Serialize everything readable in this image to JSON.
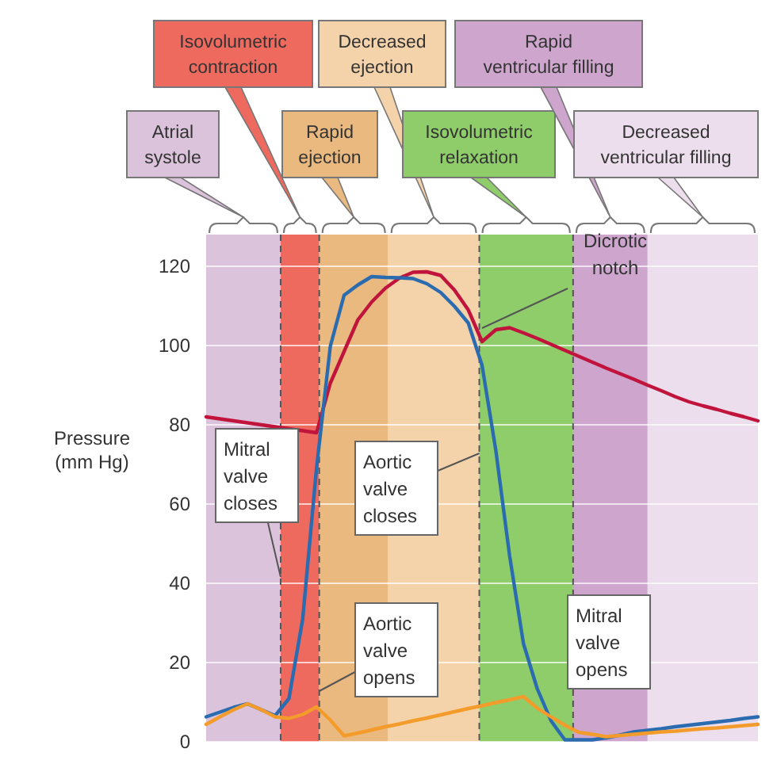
{
  "chart_data": {
    "type": "line",
    "ylabel": "Pressure (mm Hg)",
    "ylim": [
      0,
      128
    ],
    "yticks": [
      0,
      20,
      40,
      60,
      80,
      100,
      120
    ],
    "tick_labels": "y",
    "grid": "y",
    "line_style": "solid",
    "categories": [
      null,
      null,
      null,
      null,
      null,
      null,
      null,
      null,
      null,
      null,
      null,
      null,
      null,
      null,
      null,
      null,
      null,
      null,
      null,
      null,
      null,
      null,
      null,
      null,
      null,
      null,
      null,
      null,
      null,
      null,
      null,
      null,
      null,
      null,
      null,
      null,
      null,
      null,
      null,
      null,
      null
    ],
    "series": [
      {
        "color": "#c0143c",
        "values": [
          82,
          81.5,
          81,
          80.5,
          80,
          79.5,
          79,
          78.5,
          78,
          90.5,
          98.5,
          106.5,
          111,
          114.5,
          117,
          118.5,
          118.6,
          117.7,
          114,
          109,
          101,
          104,
          104.5,
          103.2,
          101.8,
          100.3,
          98.8,
          97.3,
          95.8,
          94.3,
          92.9,
          91.5,
          90,
          88.6,
          87.1,
          85.8,
          84.8,
          83.9,
          82.9,
          82,
          81
        ]
      },
      {
        "color": "#2b6cb0",
        "values": [
          6.3,
          7.5,
          8.7,
          9.6,
          8.1,
          6.6,
          10.9,
          31,
          69,
          99.8,
          112.7,
          115.3,
          117.4,
          117.2,
          117.1,
          116.9,
          115.6,
          113.4,
          109.9,
          105.7,
          95,
          73.5,
          46.9,
          24.8,
          13.4,
          5.3,
          0.5,
          0.5,
          0.5,
          1,
          1.7,
          2.5,
          2.9,
          3.3,
          3.8,
          4.2,
          4.6,
          5,
          5.4,
          5.9,
          6.3
        ]
      },
      {
        "color": "#f39c2b",
        "values": [
          4.4,
          6.3,
          8.1,
          9.6,
          8.1,
          6.3,
          5.9,
          6.9,
          8.8,
          5.5,
          1.5,
          2.2,
          3,
          3.8,
          4.5,
          5.3,
          6,
          6.8,
          7.6,
          8.4,
          9.1,
          9.9,
          10.6,
          11.4,
          8.5,
          6.3,
          4.2,
          2.4,
          1.9,
          1.3,
          1.6,
          1.9,
          2.2,
          2.5,
          2.7,
          3,
          3.3,
          3.5,
          3.8,
          4.1,
          4.4
        ]
      }
    ],
    "annotations": [
      "Atrial systole",
      "Isovolumetric contraction",
      "Rapid ejection",
      "Decreased ejection",
      "Isovolumetric relaxation",
      "Rapid ventricular filling",
      "Decreased ventricular filling",
      "Mitral valve closes",
      "Aortic valve opens",
      "Aortic valve closes",
      "Mitral valve opens",
      "Dicrotic notch"
    ]
  }
}
